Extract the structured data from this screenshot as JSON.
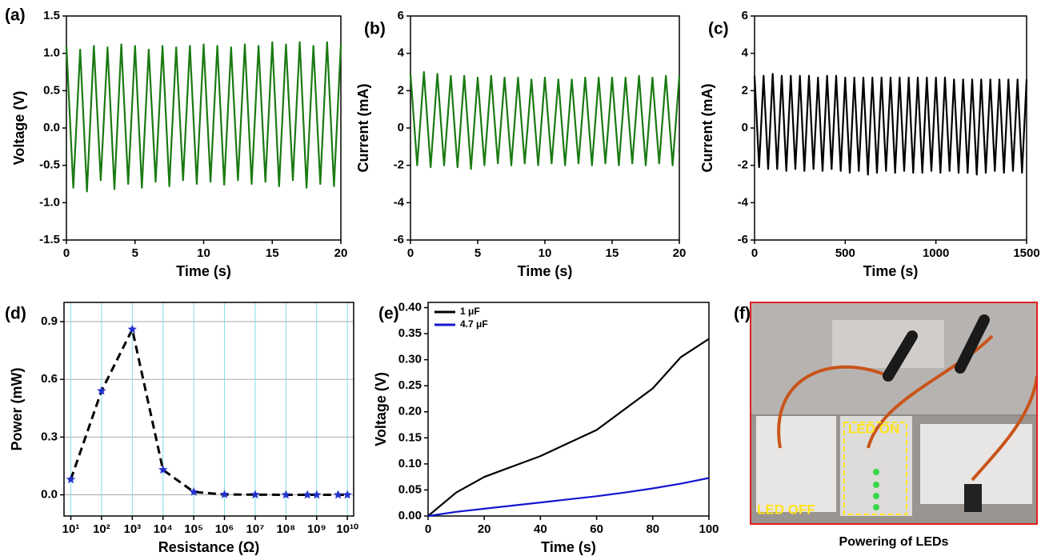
{
  "chart_data": [
    {
      "type": "line",
      "label": "(a)",
      "x_label": "Time (s)",
      "y_label": "Voltage (V)",
      "color": "#1a7a12",
      "xlim": [
        0,
        20
      ],
      "xticks": [
        0,
        5,
        10,
        15,
        20
      ],
      "ylim": [
        -1.5,
        1.5
      ],
      "yticks": [
        -1.5,
        {
          "value": -1,
          "label": "-1.0"
        },
        -0.5,
        {
          "value": 0,
          "label": "0.0"
        },
        0.5,
        {
          "value": 1,
          "label": "1.0"
        },
        1.5
      ],
      "x": [
        0,
        0.5,
        1,
        1.5,
        2,
        2.5,
        3,
        3.5,
        4,
        4.5,
        5,
        5.5,
        6,
        6.5,
        7,
        7.5,
        8,
        8.5,
        9,
        9.5,
        10,
        10.5,
        11,
        11.5,
        12,
        12.5,
        13,
        13.5,
        14,
        14.5,
        15,
        15.5,
        16,
        16.5,
        17,
        17.5,
        18,
        18.5,
        19,
        19.5,
        20
      ],
      "values": [
        1.1,
        -0.8,
        1.05,
        -0.85,
        1.1,
        -0.7,
        1.08,
        -0.82,
        1.12,
        -0.75,
        1.1,
        -0.8,
        1.05,
        -0.72,
        1.1,
        -0.78,
        1.08,
        -0.7,
        1.1,
        -0.75,
        1.12,
        -0.72,
        1.1,
        -0.76,
        1.08,
        -0.7,
        1.12,
        -0.75,
        1.1,
        -0.72,
        1.15,
        -0.78,
        1.12,
        -0.7,
        1.15,
        -0.8,
        1.1,
        -0.75,
        1.15,
        -0.78,
        1.12
      ]
    },
    {
      "type": "line",
      "label": "(b)",
      "x_label": "Time (s)",
      "y_label": "Current (mA)",
      "color": "#1a7a12",
      "xlim": [
        0,
        20
      ],
      "xticks": [
        0,
        5,
        10,
        15,
        20
      ],
      "ylim": [
        -6,
        6
      ],
      "yticks": [
        -6,
        -4,
        -2,
        0,
        2,
        4,
        6
      ],
      "x": [
        0,
        0.5,
        1,
        1.5,
        2,
        2.5,
        3,
        3.5,
        4,
        4.5,
        5,
        5.5,
        6,
        6.5,
        7,
        7.5,
        8,
        8.5,
        9,
        9.5,
        10,
        10.5,
        11,
        11.5,
        12,
        12.5,
        13,
        13.5,
        14,
        14.5,
        15,
        15.5,
        16,
        16.5,
        17,
        17.5,
        18,
        18.5,
        19,
        19.5,
        20
      ],
      "values": [
        2.9,
        -2.0,
        3.0,
        -2.1,
        2.9,
        -2.0,
        2.8,
        -2.1,
        2.8,
        -2.2,
        2.7,
        -2.0,
        2.8,
        -1.9,
        2.7,
        -2.0,
        2.7,
        -1.9,
        2.6,
        -2.0,
        2.7,
        -1.9,
        2.6,
        -2.0,
        2.6,
        -1.9,
        2.7,
        -2.0,
        2.7,
        -1.9,
        2.7,
        -2.0,
        2.7,
        -1.9,
        2.8,
        -2.0,
        2.7,
        -1.9,
        2.8,
        -2.0,
        2.8
      ]
    },
    {
      "type": "line",
      "label": "(c)",
      "x_label": "Time (s)",
      "y_label": "Current (mA)",
      "color": "#000000",
      "xlim": [
        0,
        1500
      ],
      "xticks": [
        0,
        500,
        1000,
        1500
      ],
      "ylim": [
        -6,
        6
      ],
      "yticks": [
        -6,
        -4,
        -2,
        0,
        2,
        4,
        6
      ],
      "x": [
        0,
        25,
        50,
        75,
        100,
        125,
        150,
        175,
        200,
        225,
        250,
        275,
        300,
        325,
        350,
        375,
        400,
        425,
        450,
        475,
        500,
        525,
        550,
        575,
        600,
        625,
        650,
        675,
        700,
        725,
        750,
        775,
        800,
        825,
        850,
        875,
        900,
        925,
        950,
        975,
        1000,
        1025,
        1050,
        1075,
        1100,
        1125,
        1150,
        1175,
        1200,
        1225,
        1250,
        1275,
        1300,
        1325,
        1350,
        1375,
        1400,
        1425,
        1450,
        1475,
        1500
      ],
      "values": [
        2.8,
        -2.1,
        2.8,
        -2.2,
        2.9,
        -2.2,
        2.8,
        -2.3,
        2.8,
        -2.2,
        2.8,
        -2.3,
        2.8,
        -2.2,
        2.7,
        -2.3,
        2.8,
        -2.2,
        2.8,
        -2.3,
        2.7,
        -2.4,
        2.7,
        -2.3,
        2.7,
        -2.5,
        2.7,
        -2.4,
        2.7,
        -2.3,
        2.7,
        -2.4,
        2.7,
        -2.3,
        2.7,
        -2.4,
        2.7,
        -2.4,
        2.7,
        -2.3,
        2.7,
        -2.4,
        2.7,
        -2.3,
        2.6,
        -2.4,
        2.6,
        -2.4,
        2.6,
        -2.5,
        2.6,
        -2.4,
        2.6,
        -2.3,
        2.6,
        -2.4,
        2.6,
        -2.3,
        2.6,
        -2.4,
        2.6
      ]
    },
    {
      "type": "line",
      "label": "(d)",
      "x_label": "Resistance (Ω)",
      "y_label": "Power (mW)",
      "xscale": "log",
      "color": "#000000",
      "line_style": "dashed",
      "marker": "star",
      "marker_color": "#2233cc",
      "grid": true,
      "grid_color": "#7fe0ea",
      "xlim": [
        6,
        16000000000
      ],
      "xticks": [
        {
          "value": 10,
          "label": "10¹"
        },
        {
          "value": 100,
          "label": "10²"
        },
        {
          "value": 1000,
          "label": "10³"
        },
        {
          "value": 10000,
          "label": "10⁴"
        },
        {
          "value": 100000,
          "label": "10⁵"
        },
        {
          "value": 1000000,
          "label": "10⁶"
        },
        {
          "value": 10000000,
          "label": "10⁷"
        },
        {
          "value": 100000000,
          "label": "10⁸"
        },
        {
          "value": 1000000000,
          "label": "10⁹"
        },
        {
          "value": 10000000000,
          "label": "10¹⁰"
        }
      ],
      "ylim": [
        -0.11,
        1.0
      ],
      "yticks": [
        {
          "value": 0,
          "label": "0.0"
        },
        0.3,
        0.6,
        0.9
      ],
      "x": [
        10,
        100,
        1000,
        10000,
        100000,
        1000000,
        10000000,
        100000000,
        500000000,
        1000000000,
        5000000000,
        10000000000
      ],
      "values": [
        0.08,
        0.54,
        0.86,
        0.13,
        0.015,
        0.002,
        0.001,
        0,
        0,
        0,
        0,
        0
      ]
    },
    {
      "type": "line",
      "label": "(e)",
      "x_label": "Time (s)",
      "y_label": "Voltage (V)",
      "legend": "upper-left",
      "xlim": [
        0,
        100
      ],
      "xticks": [
        0,
        20,
        40,
        60,
        80,
        100
      ],
      "ylim": [
        0,
        0.41
      ],
      "yticks": [
        {
          "value": 0,
          "label": "0.00"
        },
        {
          "value": 0.05,
          "label": "0.05"
        },
        {
          "value": 0.1,
          "label": "0.10"
        },
        {
          "value": 0.15,
          "label": "0.15"
        },
        {
          "value": 0.2,
          "label": "0.20"
        },
        {
          "value": 0.25,
          "label": "0.25"
        },
        {
          "value": 0.3,
          "label": "0.30"
        },
        {
          "value": 0.35,
          "label": "0.35"
        },
        {
          "value": 0.4,
          "label": "0.40"
        }
      ],
      "x": [
        0,
        10,
        20,
        30,
        40,
        50,
        60,
        70,
        80,
        90,
        100
      ],
      "series": [
        {
          "name": "1 μF",
          "color": "#000000",
          "values": [
            0,
            0.045,
            0.075,
            0.095,
            0.115,
            0.14,
            0.165,
            0.205,
            0.245,
            0.305,
            0.34
          ]
        },
        {
          "name": "4.7 μF",
          "color": "#1515d0",
          "values": [
            0,
            0.008,
            0.014,
            0.02,
            0.026,
            0.032,
            0.038,
            0.045,
            0.053,
            0.062,
            0.073
          ]
        }
      ]
    }
  ],
  "photo": {
    "label": "(f)",
    "led_on": "LED ON",
    "led_off": "LED OFF",
    "caption": "Powering of LEDs"
  }
}
